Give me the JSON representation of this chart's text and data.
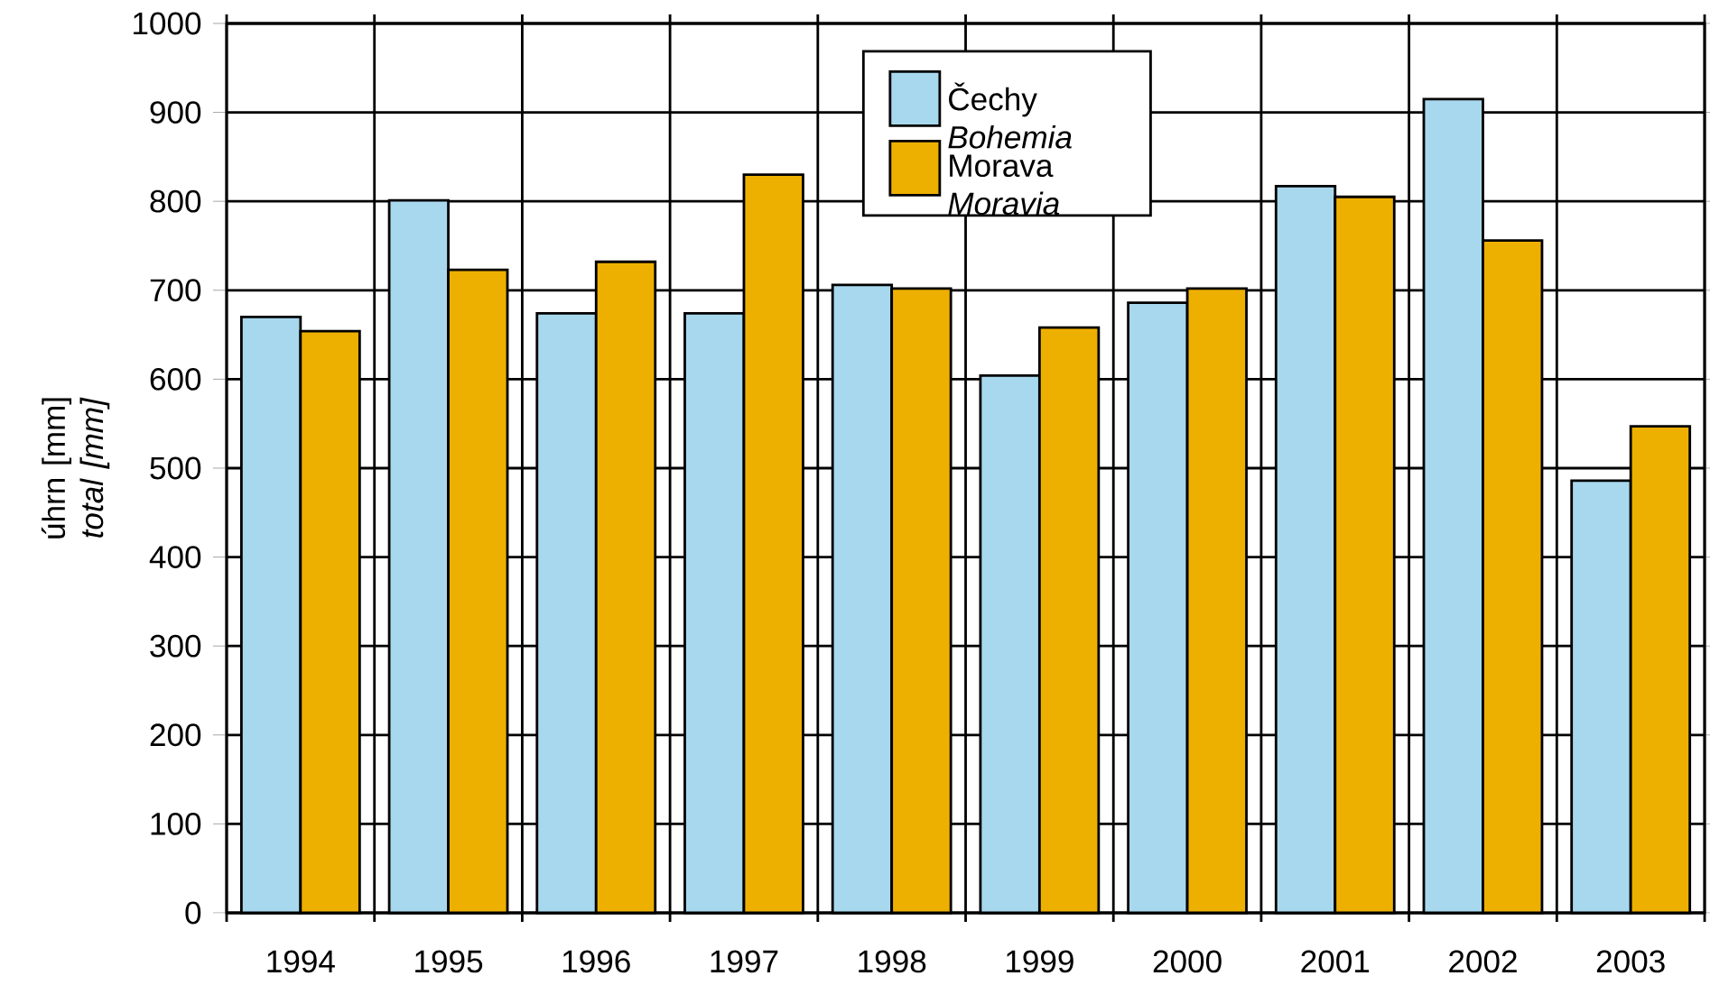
{
  "chart_data": {
    "type": "bar",
    "ylabel": "úhrn [mm] *total [mm]*",
    "categories": [
      "1994",
      "1995",
      "1996",
      "1997",
      "1998",
      "1999",
      "2000",
      "2001",
      "2002",
      "2003"
    ],
    "series": [
      {
        "name": "Čechy *Bohemia*",
        "color": "#a8d8ee",
        "values": [
          670,
          801,
          674,
          674,
          706,
          604,
          686,
          817,
          915,
          486
        ]
      },
      {
        "name": "Morava *Moravia*",
        "color": "#eeb000",
        "values": [
          654,
          723,
          732,
          830,
          702,
          658,
          702,
          805,
          756,
          547
        ]
      }
    ],
    "ylim": [
      0,
      1000
    ],
    "yticks": [
      0,
      100,
      200,
      300,
      400,
      500,
      600,
      700,
      800,
      900,
      1000
    ],
    "grid": true,
    "legend": "top"
  }
}
